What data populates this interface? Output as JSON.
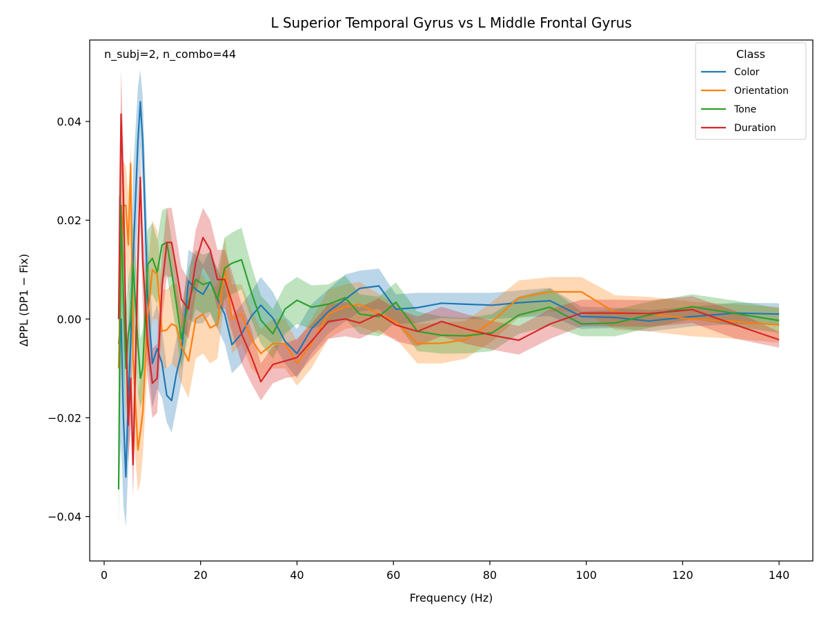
{
  "chart_data": {
    "type": "line",
    "title": "L Superior Temporal Gyrus vs L Middle Frontal Gyrus",
    "xlabel": "Frequency (Hz)",
    "ylabel": "ΔPPL (DP1 − Fix)",
    "annotation": "n_subj=2, n_combo=44",
    "xlim": [
      -3,
      147
    ],
    "ylim": [
      -0.049,
      0.0565
    ],
    "xticks": [
      0,
      20,
      40,
      60,
      80,
      100,
      120,
      140
    ],
    "xtick_labels": [
      "0",
      "20",
      "40",
      "60",
      "80",
      "100",
      "120",
      "140"
    ],
    "yticks": [
      -0.04,
      -0.02,
      0.0,
      0.02,
      0.04
    ],
    "ytick_labels": [
      "−0.04",
      "−0.02",
      "0.00",
      "0.02",
      "0.04"
    ],
    "grid": false,
    "legend": {
      "title": "Class",
      "position": "top-right"
    },
    "x": [
      3,
      3.5,
      4,
      4.5,
      5,
      5.5,
      6,
      7,
      7.5,
      8,
      9,
      10,
      11,
      12,
      13,
      14,
      15,
      16,
      17.5,
      19,
      20.5,
      22,
      23.5,
      25,
      26.5,
      28.5,
      30.5,
      32.5,
      35,
      37.5,
      40,
      43,
      46.5,
      50,
      53,
      57,
      60.5,
      65,
      70,
      75,
      80.5,
      86,
      92.5,
      99,
      106,
      113,
      122,
      131,
      140
    ],
    "series": [
      {
        "name": "Color",
        "color": "#1f77b4",
        "values": [
          -0.005,
          0.0,
          -0.02,
          -0.032,
          -0.016,
          -0.005,
          0.012,
          0.036,
          0.044,
          0.036,
          0.005,
          -0.009,
          -0.006,
          -0.009,
          -0.0155,
          -0.0165,
          -0.011,
          -0.007,
          0.0077,
          0.006,
          0.005,
          0.0075,
          0.004,
          0.001,
          -0.0052,
          -0.003,
          0.0005,
          0.0028,
          0.0002,
          -0.0045,
          -0.007,
          -0.002,
          0.0015,
          0.004,
          0.0062,
          0.0067,
          0.002,
          0.0023,
          0.0032,
          0.003,
          0.0028,
          0.0033,
          0.0037,
          0.0005,
          0.0003,
          -0.0004,
          0.0005,
          0.0012,
          0.001
        ],
        "lower": [
          -0.035,
          -0.025,
          -0.038,
          -0.042,
          -0.03,
          -0.02,
          -0.008,
          0.022,
          0.035,
          0.027,
          -0.008,
          -0.018,
          -0.014,
          -0.016,
          -0.021,
          -0.023,
          -0.018,
          -0.013,
          0.0,
          -0.001,
          -0.0008,
          0.001,
          -0.002,
          -0.005,
          -0.011,
          -0.009,
          -0.005,
          -0.003,
          -0.005,
          -0.009,
          -0.012,
          -0.007,
          -0.003,
          -0.0005,
          0.0015,
          0.002,
          -0.001,
          -0.0008,
          0.0002,
          0.0,
          0.0,
          0.0003,
          0.0006,
          -0.002,
          -0.0018,
          -0.0025,
          -0.0015,
          -0.001,
          -0.0012
        ],
        "upper": [
          0.025,
          0.025,
          0.005,
          -0.02,
          0.0,
          0.01,
          0.03,
          0.047,
          0.0505,
          0.045,
          0.016,
          0.0,
          0.003,
          -0.002,
          -0.01,
          -0.009,
          -0.004,
          -0.001,
          0.014,
          0.013,
          0.011,
          0.014,
          0.01,
          0.007,
          0.0005,
          0.003,
          0.0055,
          0.0085,
          0.0055,
          0.0005,
          -0.002,
          0.003,
          0.006,
          0.009,
          0.0098,
          0.0102,
          0.005,
          0.0053,
          0.0053,
          0.0053,
          0.0053,
          0.0058,
          0.0063,
          0.0025,
          0.0023,
          0.0018,
          0.0025,
          0.0033,
          0.0032
        ]
      },
      {
        "name": "Orientation",
        "color": "#ff7f0e",
        "values": [
          -0.01,
          0.012,
          0.023,
          0.023,
          0.015,
          0.0315,
          -0.008,
          -0.0265,
          -0.023,
          -0.019,
          0.0,
          0.01,
          0.009,
          -0.0025,
          -0.0022,
          -0.001,
          -0.0015,
          -0.0055,
          -0.0085,
          0.0,
          0.001,
          -0.0018,
          -0.001,
          0.0105,
          0.0,
          0.001,
          -0.004,
          -0.007,
          -0.005,
          -0.005,
          -0.009,
          -0.005,
          0.001,
          0.0025,
          0.003,
          0.001,
          -0.0005,
          -0.005,
          -0.0049,
          -0.0042,
          -0.0005,
          0.0043,
          0.0055,
          0.0055,
          0.0013,
          0.001,
          0.0,
          -0.0005,
          -0.0012
        ],
        "lower": [
          -0.03,
          -0.01,
          0.01,
          0.012,
          0.003,
          0.015,
          -0.022,
          -0.035,
          -0.033,
          -0.028,
          -0.01,
          0.0,
          0.0,
          -0.01,
          -0.01,
          -0.009,
          -0.01,
          -0.013,
          -0.016,
          -0.008,
          -0.007,
          -0.009,
          -0.008,
          0.004,
          -0.007,
          -0.005,
          -0.01,
          -0.012,
          -0.01,
          -0.01,
          -0.0135,
          -0.01,
          -0.004,
          -0.002,
          -0.0015,
          -0.003,
          -0.004,
          -0.009,
          -0.009,
          -0.008,
          -0.0045,
          0.0003,
          0.0015,
          0.0015,
          -0.0022,
          -0.0025,
          -0.0035,
          -0.004,
          -0.0048
        ],
        "upper": [
          0.01,
          0.032,
          0.032,
          0.031,
          0.025,
          0.035,
          0.008,
          -0.015,
          -0.012,
          -0.008,
          0.01,
          0.02,
          0.018,
          0.006,
          0.006,
          0.007,
          0.007,
          0.002,
          -0.001,
          0.008,
          0.009,
          0.006,
          0.007,
          0.0165,
          0.007,
          0.007,
          0.002,
          -0.002,
          0.0,
          0.0,
          -0.0045,
          0.0,
          0.006,
          0.007,
          0.0075,
          0.005,
          0.003,
          -0.001,
          -0.0008,
          -0.0004,
          0.0035,
          0.0078,
          0.0085,
          0.0085,
          0.0048,
          0.0045,
          0.0035,
          0.003,
          0.0024
        ]
      },
      {
        "name": "Tone",
        "color": "#2ca02c",
        "values": [
          -0.0345,
          0.023,
          0.005,
          -0.01,
          -0.003,
          0.0,
          0.011,
          -0.005,
          -0.012,
          -0.01,
          0.011,
          0.0123,
          0.0095,
          0.015,
          0.0155,
          0.0095,
          0.003,
          -0.004,
          0.0035,
          0.008,
          0.007,
          0.0075,
          0.004,
          0.0103,
          0.0113,
          0.012,
          0.0055,
          -0.0002,
          -0.003,
          0.002,
          0.0038,
          0.0024,
          0.003,
          0.0043,
          0.001,
          0.0005,
          0.0034,
          -0.0025,
          -0.0033,
          -0.0034,
          -0.0028,
          0.0008,
          0.0024,
          -0.001,
          -0.0008,
          0.0008,
          0.0025,
          0.0011,
          -0.0003
        ],
        "lower": [
          -0.043,
          0.005,
          -0.01,
          -0.02,
          -0.013,
          -0.01,
          0.0,
          -0.015,
          -0.018,
          -0.016,
          0.004,
          0.005,
          0.003,
          0.008,
          0.009,
          0.003,
          -0.003,
          -0.01,
          -0.003,
          0.002,
          0.001,
          0.0015,
          -0.002,
          0.004,
          0.005,
          0.006,
          0.0,
          -0.005,
          -0.008,
          -0.003,
          -0.001,
          -0.002,
          -0.001,
          0.0,
          -0.003,
          -0.0035,
          -0.0006,
          -0.0065,
          -0.007,
          -0.007,
          -0.0065,
          -0.003,
          -0.0014,
          -0.0035,
          -0.0035,
          -0.0018,
          0.0,
          -0.0015,
          -0.0028
        ],
        "upper": [
          -0.02,
          0.03,
          0.015,
          0.002,
          0.008,
          0.012,
          0.02,
          0.005,
          -0.004,
          -0.002,
          0.018,
          0.0195,
          0.016,
          0.022,
          0.0225,
          0.016,
          0.009,
          0.002,
          0.0105,
          0.014,
          0.013,
          0.0135,
          0.01,
          0.0165,
          0.0175,
          0.0185,
          0.011,
          0.0048,
          0.002,
          0.0068,
          0.0085,
          0.0068,
          0.007,
          0.0088,
          0.005,
          0.0045,
          0.0074,
          0.0015,
          0.0005,
          0.0002,
          0.001,
          0.0045,
          0.0062,
          0.0015,
          0.0019,
          0.0035,
          0.005,
          0.0037,
          0.0022
        ]
      },
      {
        "name": "Duration",
        "color": "#d62728",
        "values": [
          0.0,
          0.0415,
          0.025,
          -0.001,
          -0.0215,
          -0.012,
          -0.0295,
          0.012,
          0.0287,
          0.012,
          -0.0048,
          -0.013,
          -0.012,
          0.0065,
          0.0155,
          0.0155,
          0.01,
          0.004,
          0.002,
          0.0115,
          0.0165,
          0.014,
          0.008,
          0.008,
          0.0035,
          -0.003,
          -0.0075,
          -0.0127,
          -0.0092,
          -0.0085,
          -0.0078,
          -0.0045,
          -0.0005,
          0.0,
          -0.0008,
          0.001,
          -0.0012,
          -0.0025,
          -0.0005,
          -0.002,
          -0.0033,
          -0.0043,
          -0.001,
          0.0012,
          0.0012,
          0.0011,
          0.0019,
          -0.0012,
          -0.0042
        ],
        "lower": [
          -0.01,
          0.03,
          0.015,
          -0.01,
          -0.029,
          -0.022,
          -0.036,
          0.0,
          0.02,
          0.003,
          -0.012,
          -0.02,
          -0.019,
          0.0,
          0.0085,
          0.0085,
          0.0035,
          -0.002,
          -0.004,
          0.005,
          0.0105,
          0.008,
          0.002,
          0.002,
          -0.0025,
          -0.009,
          -0.013,
          -0.0165,
          -0.013,
          -0.012,
          -0.0115,
          -0.008,
          -0.004,
          -0.0035,
          -0.004,
          -0.0022,
          -0.0045,
          -0.0055,
          -0.0035,
          -0.005,
          -0.0062,
          -0.0072,
          -0.004,
          -0.0015,
          -0.0015,
          -0.0016,
          -0.0008,
          -0.004,
          -0.0058
        ],
        "upper": [
          0.01,
          0.0505,
          0.035,
          0.008,
          -0.014,
          -0.002,
          -0.02,
          0.02,
          0.034,
          0.02,
          0.002,
          -0.006,
          -0.005,
          0.013,
          0.0225,
          0.0225,
          0.0165,
          0.0105,
          0.008,
          0.018,
          0.0225,
          0.02,
          0.014,
          0.014,
          0.0095,
          0.003,
          -0.002,
          -0.009,
          -0.0055,
          -0.005,
          -0.004,
          -0.001,
          0.003,
          0.0035,
          0.0024,
          0.0042,
          0.0021,
          0.0005,
          0.0025,
          0.001,
          -0.0004,
          -0.0014,
          0.002,
          0.0039,
          0.0039,
          0.0038,
          0.0046,
          0.0016,
          -0.0026
        ]
      }
    ]
  }
}
